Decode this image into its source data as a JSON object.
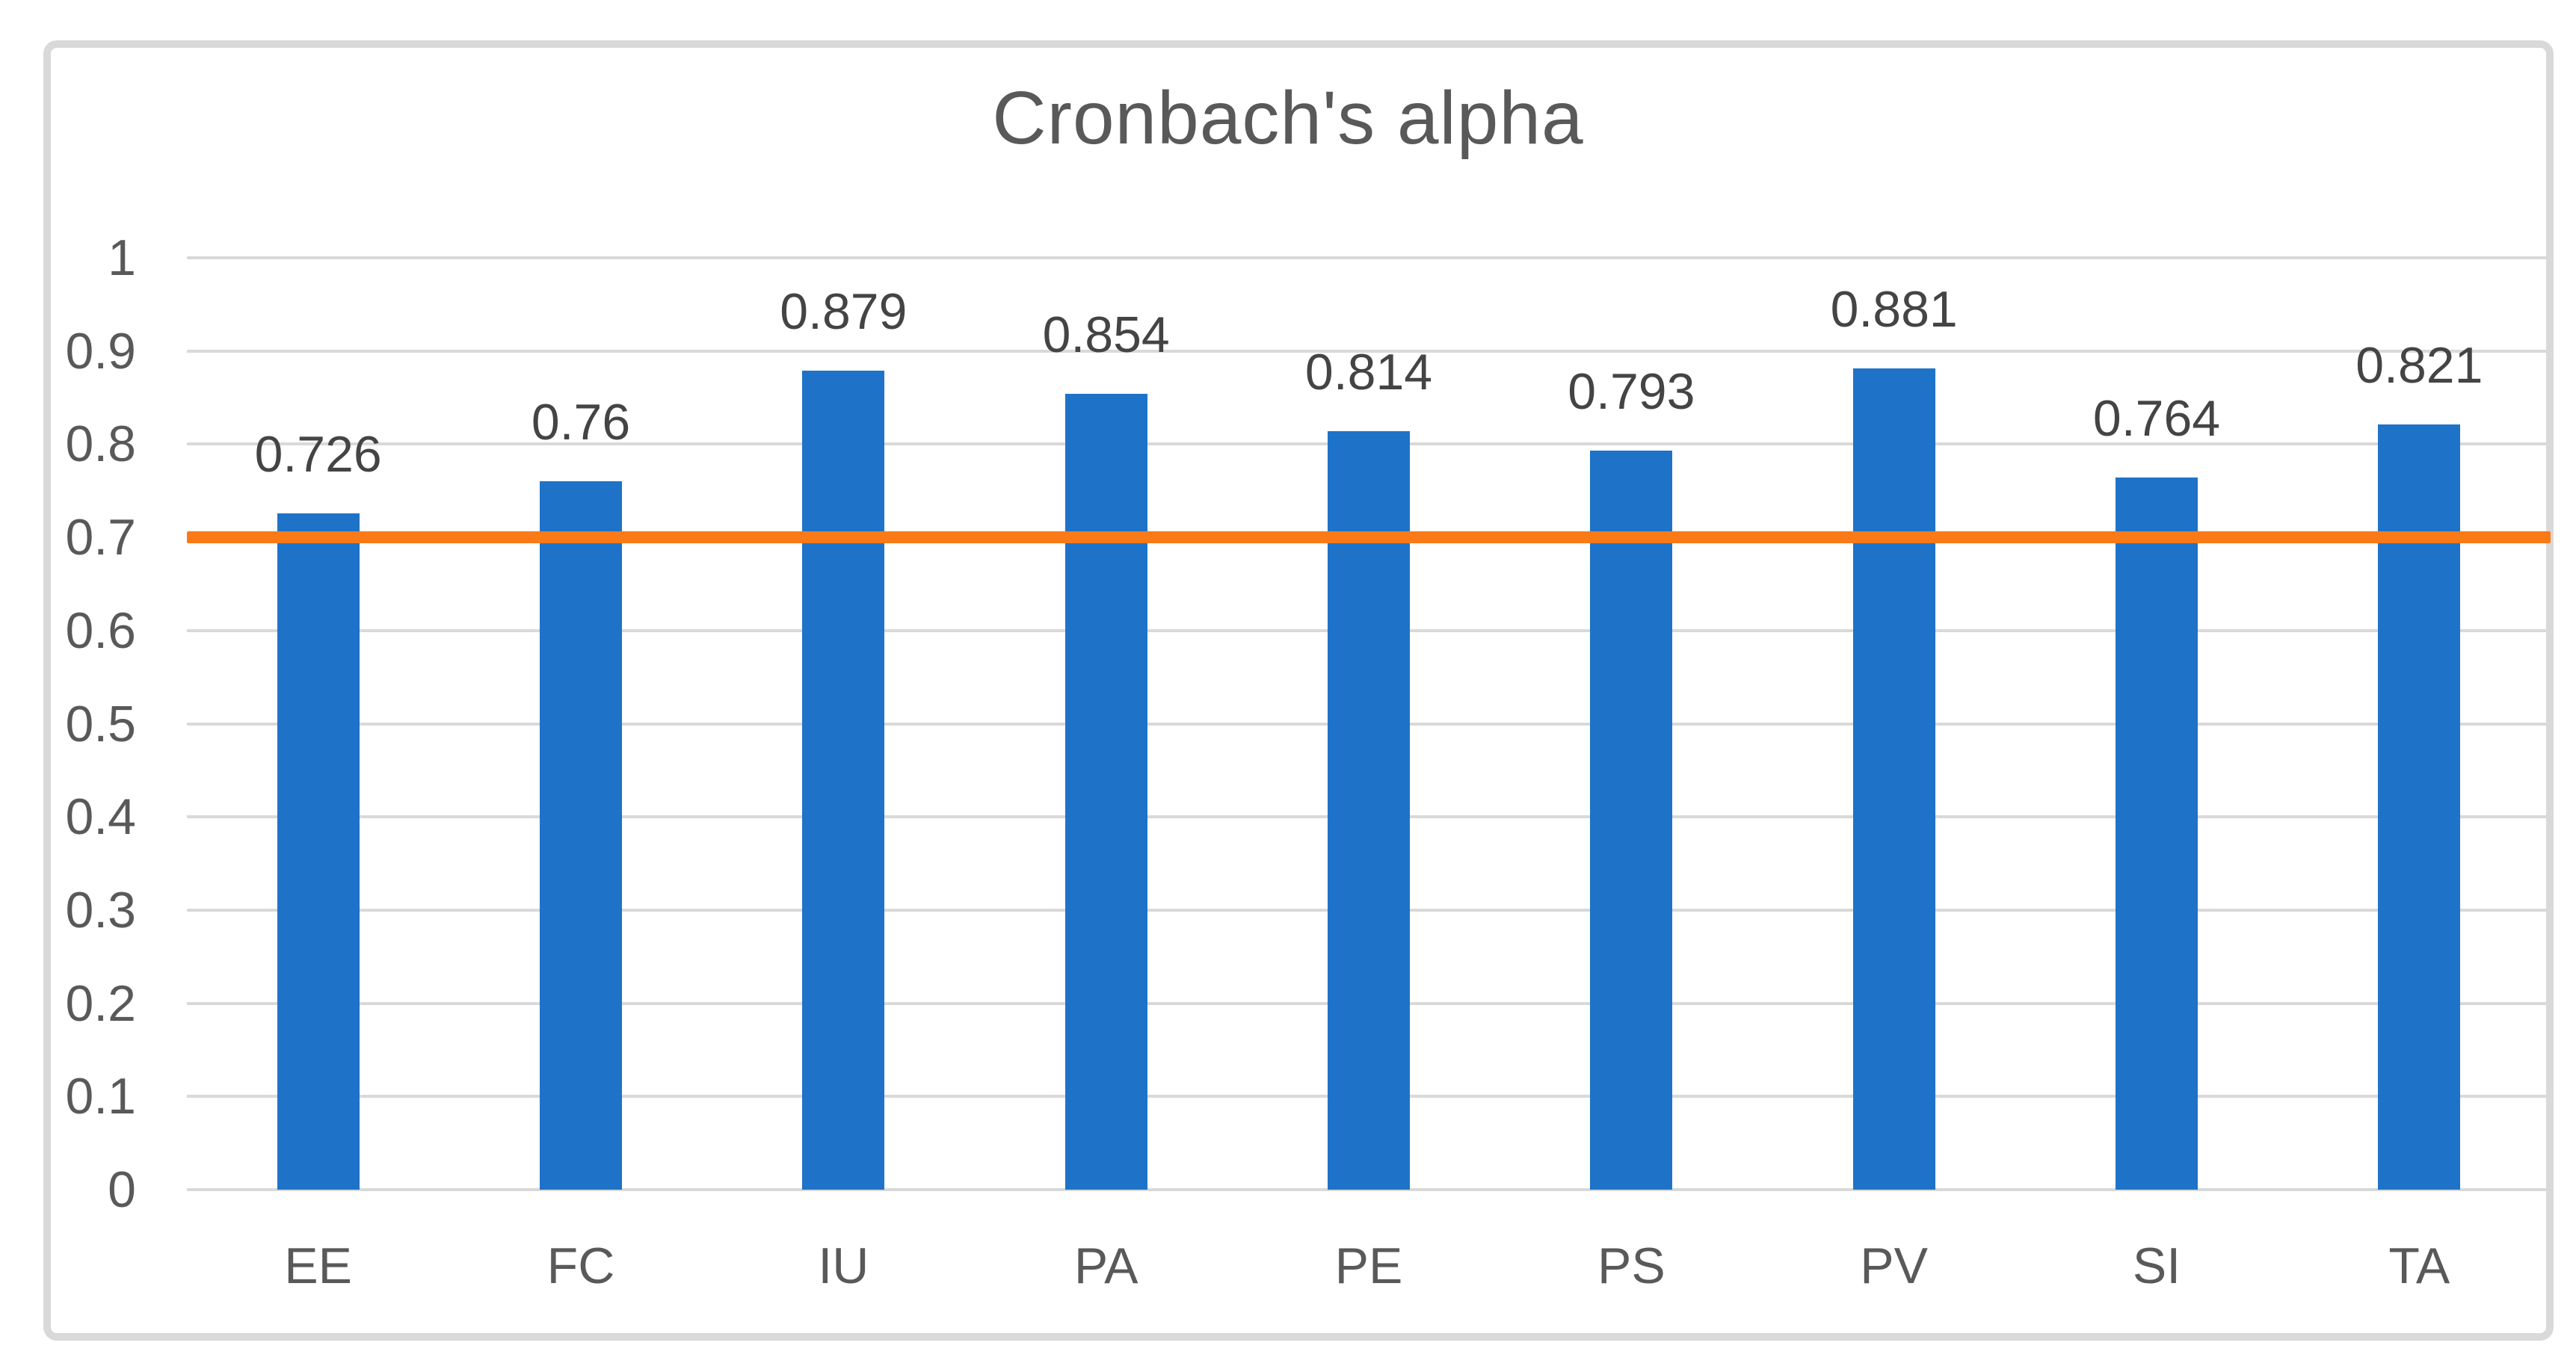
{
  "chart_data": {
    "type": "bar",
    "title": "Cronbach's alpha",
    "categories": [
      "EE",
      "FC",
      "IU",
      "PA",
      "PE",
      "PS",
      "PV",
      "SI",
      "TA"
    ],
    "values": [
      0.726,
      0.76,
      0.879,
      0.854,
      0.814,
      0.793,
      0.881,
      0.764,
      0.821
    ],
    "data_labels": [
      "0.726",
      "0.76",
      "0.879",
      "0.854",
      "0.814",
      "0.793",
      "0.881",
      "0.764",
      "0.821"
    ],
    "xlabel": "",
    "ylabel": "",
    "ylim": [
      0,
      1
    ],
    "ytick_labels": [
      "1",
      "0.9",
      "0.8",
      "0.7",
      "0.6",
      "0.5",
      "0.4",
      "0.3",
      "0.2",
      "0.1",
      "0"
    ],
    "grid": true,
    "legend": false,
    "threshold_line": {
      "value": 0.7,
      "color": "#FA7A18"
    },
    "colors": {
      "bar": "#1E73C8",
      "gridline": "#D9D9D9",
      "frame_border": "#D9D9D9",
      "title_text": "#595959",
      "axis_text": "#595959",
      "value_label_text": "#444444",
      "background": "#FFFFFF"
    }
  }
}
